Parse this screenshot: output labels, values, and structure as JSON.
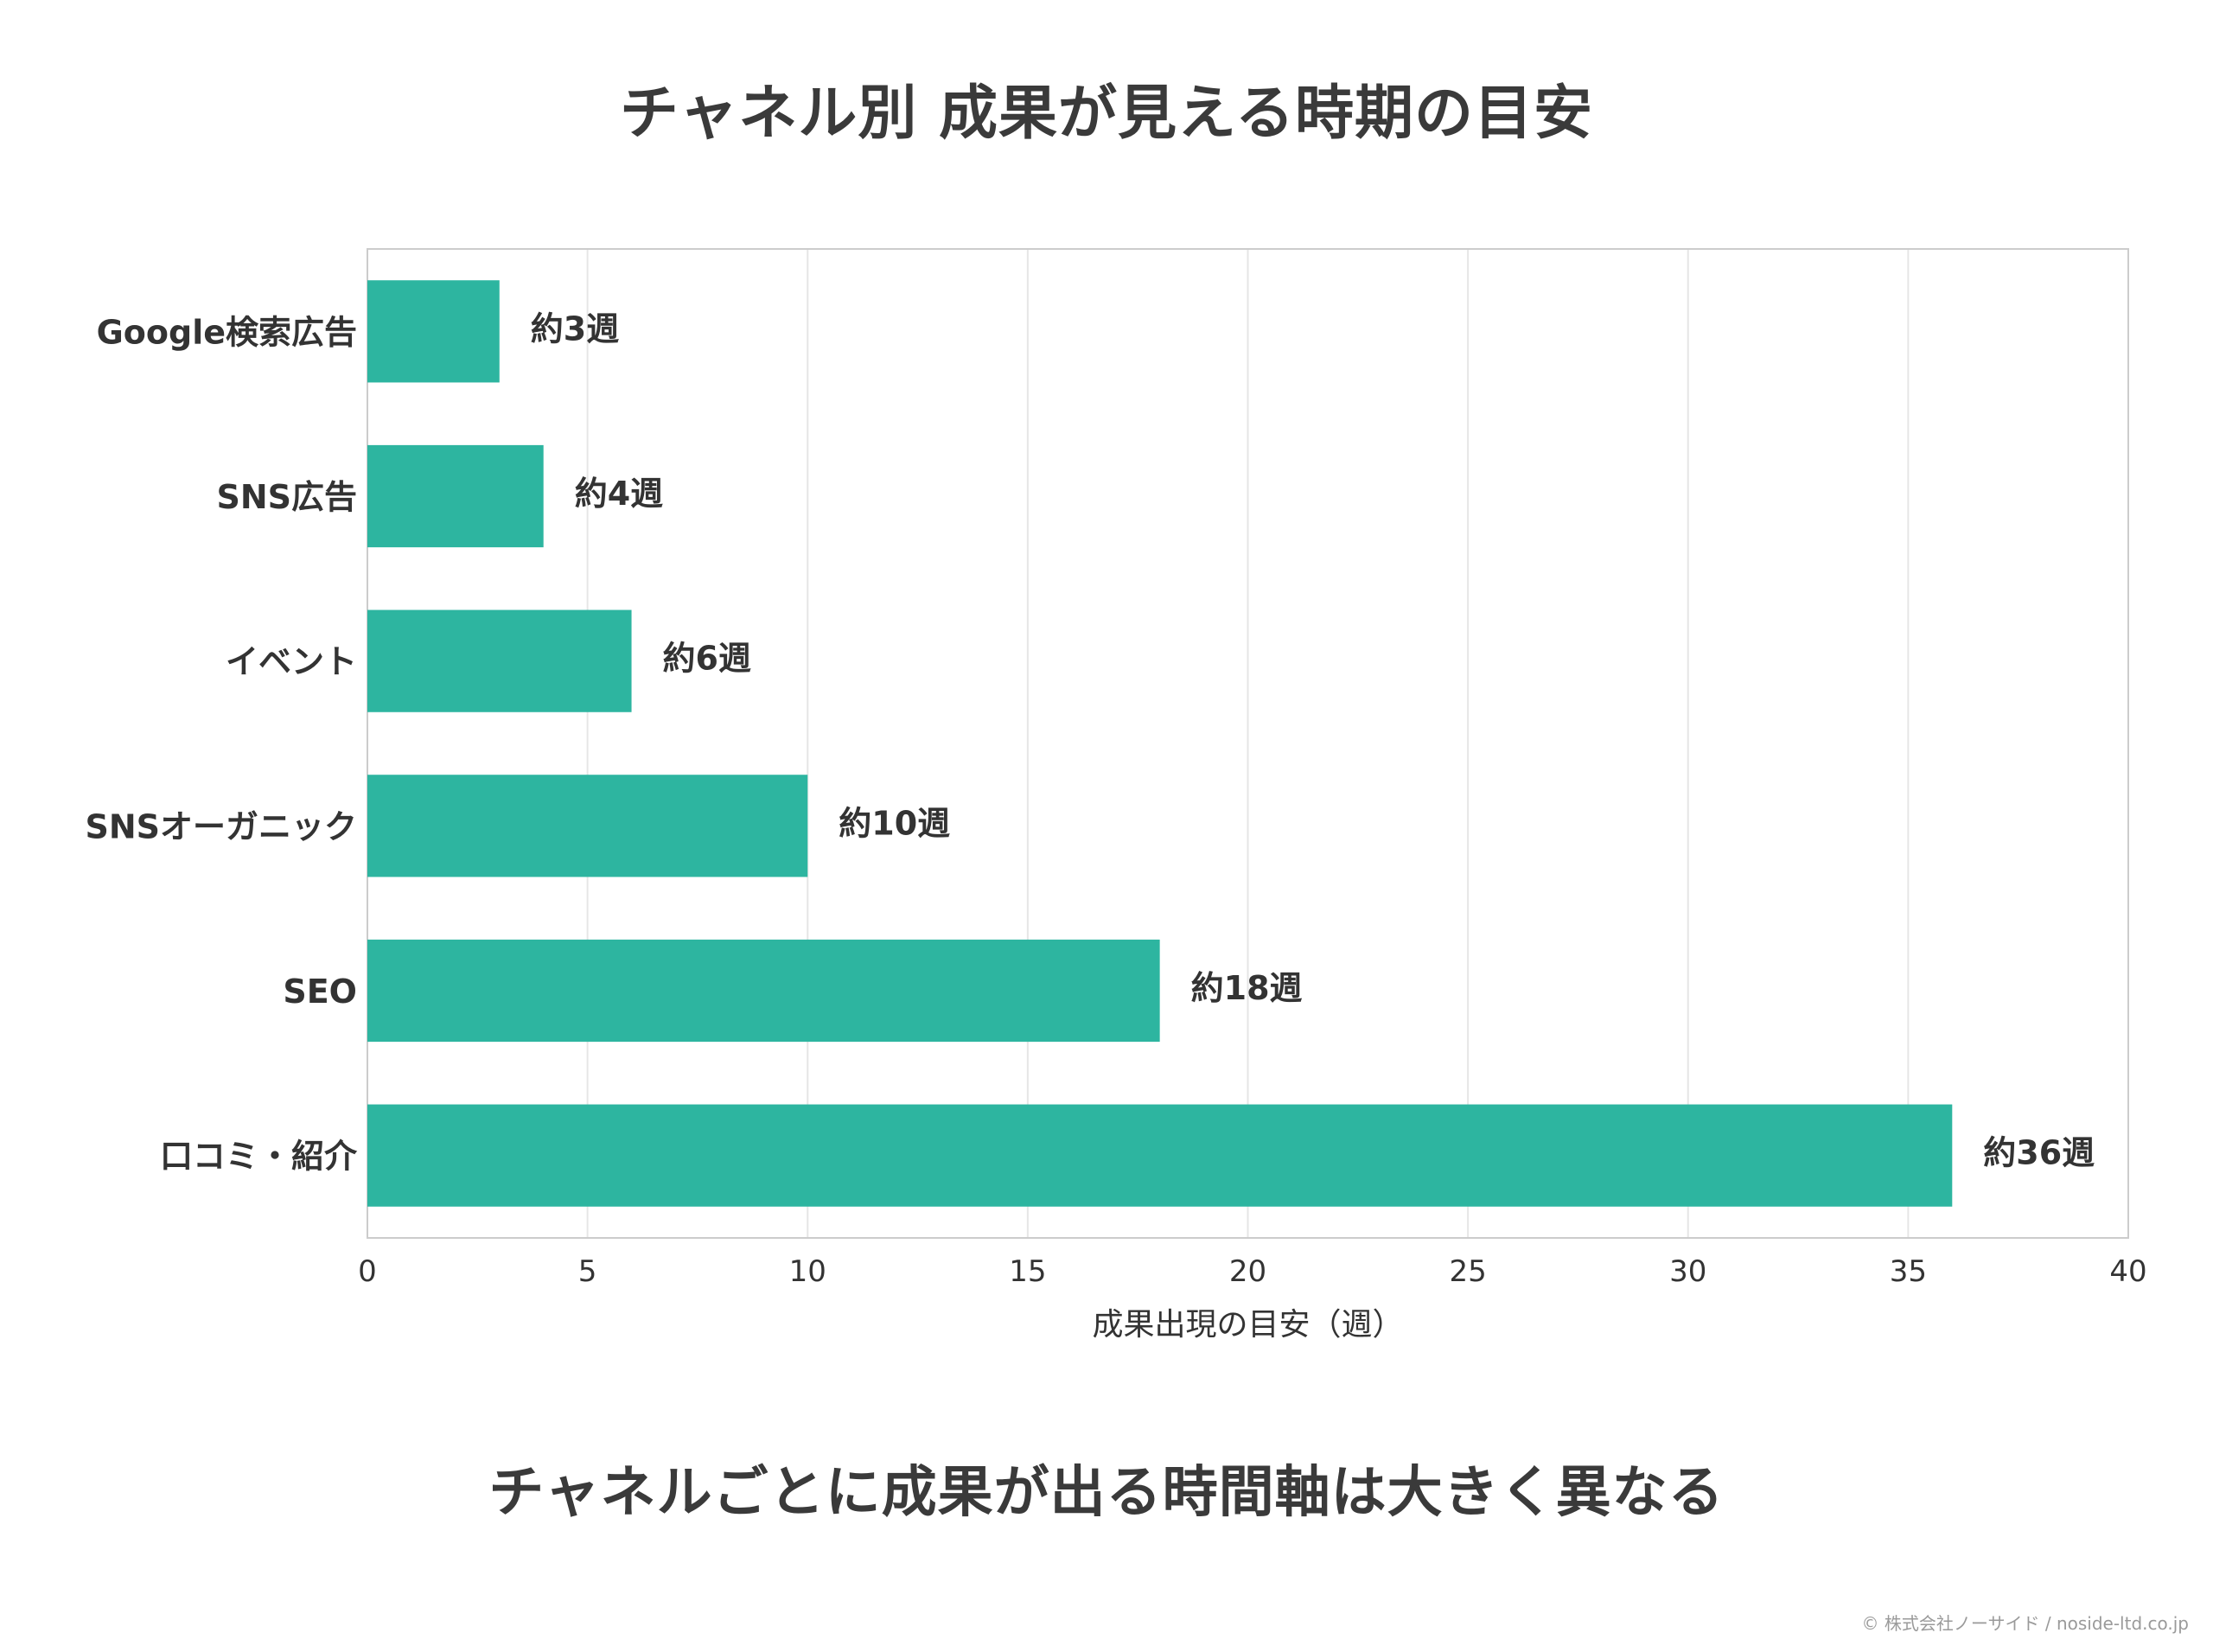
{
  "chart_data": {
    "type": "bar",
    "orientation": "horizontal",
    "title": "チャネル別 成果が見える時期の目安",
    "xlabel": "成果出現の目安（週）",
    "ylabel": "",
    "xlim": [
      0,
      40
    ],
    "xticks": [
      0,
      5,
      10,
      15,
      20,
      25,
      30,
      35,
      40
    ],
    "grid": "vertical",
    "categories": [
      "Google検索広告",
      "SNS広告",
      "イベント",
      "SNSオーガニック",
      "SEO",
      "口コミ・紹介"
    ],
    "values": [
      3,
      4,
      6,
      10,
      18,
      36
    ],
    "data_labels": [
      "約3週",
      "約4週",
      "約6週",
      "約10週",
      "約18週",
      "約36週"
    ],
    "bar_color": "#2db5a0",
    "grid_color": "#e6e6e6",
    "frame_color": "#cccccc"
  },
  "caption": "チャネルごとに成果が出る時間軸は大きく異なる",
  "credit": "© 株式会社ノーサイド / noside-ltd.co.jp"
}
